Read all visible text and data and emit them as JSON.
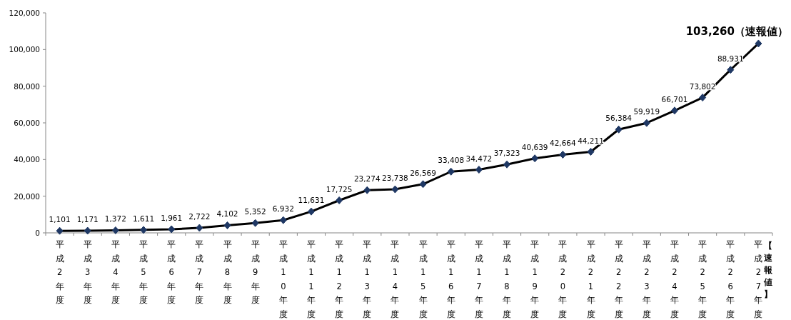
{
  "chart_data": {
    "type": "line",
    "categories": [
      "平成2年度",
      "平成3年度",
      "平成4年度",
      "平成5年度",
      "平成6年度",
      "平成7年度",
      "平成8年度",
      "平成9年度",
      "平成10年度",
      "平成11年度",
      "平成12年度",
      "平成13年度",
      "平成14年度",
      "平成15年度",
      "平成16年度",
      "平成17年度",
      "平成18年度",
      "平成19年度",
      "平成20年度",
      "平成21年度",
      "平成22年度",
      "平成23年度",
      "平成24年度",
      "平成25年度",
      "平成26年度",
      "平成27年度"
    ],
    "annotations": [
      "【速報値】"
    ],
    "series": [
      {
        "color": "#000000",
        "values": [
          1101,
          1171,
          1372,
          1611,
          1961,
          2722,
          4102,
          5352,
          6932,
          11631,
          17725,
          23274,
          23738,
          26569,
          33408,
          34472,
          37323,
          40639,
          42664,
          44211,
          56384,
          59919,
          66701,
          73802,
          88931,
          103260
        ],
        "value_labels": [
          "1,101",
          "1,171",
          "1,372",
          "1,611",
          "1,961",
          "2,722",
          "4,102",
          "5,352",
          "6,932",
          "11,631",
          "17,725",
          "23,274",
          "23,738",
          "26,569",
          "33,408",
          "34,472",
          "37,323",
          "40,639",
          "42,664",
          "44,211",
          "56,384",
          "59,919",
          "66,701",
          "73,802",
          "88,931",
          "103,260（速報値）"
        ]
      }
    ],
    "ylim": [
      0,
      120000
    ],
    "yticks": [
      0,
      {
        "value": 20000,
        "label": "20,000"
      },
      {
        "value": 40000,
        "label": "40,000"
      },
      {
        "value": 60000,
        "label": "60,000"
      },
      {
        "value": 80000,
        "label": "80,000"
      },
      {
        "value": 100000,
        "label": "100,000"
      },
      {
        "value": 120000,
        "label": "120,000"
      }
    ],
    "grid": false,
    "marker": "diamond",
    "line_style": "solid"
  }
}
